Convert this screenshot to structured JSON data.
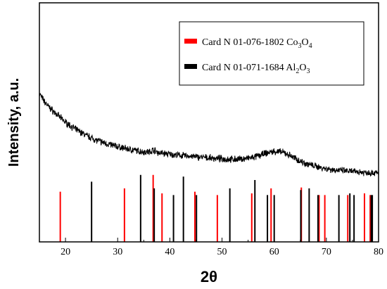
{
  "chart_data": {
    "type": "line",
    "xlabel": "2θ",
    "ylabel": "Intensity, a.u.",
    "xlim": [
      15,
      80
    ],
    "x_ticks": [
      20,
      30,
      40,
      50,
      60,
      70,
      80
    ],
    "y_ticks_shown": false,
    "grid": false,
    "legend_position": "top-right",
    "legend": [
      {
        "label": "Card N 01-076-1802 Co",
        "sub1": "3",
        "mid": "O",
        "sub2": "4",
        "color": "#ff0000"
      },
      {
        "label": "Card N 01-071-1684 Al",
        "sub1": "2",
        "mid": "O",
        "sub2": "3",
        "color": "#000000"
      }
    ],
    "pattern": {
      "name": "measured XRD pattern",
      "color": "#000000",
      "x": [
        15,
        16,
        17,
        18,
        19,
        20,
        22,
        24,
        26,
        28,
        30,
        32,
        34,
        35,
        36,
        36.9,
        37.8,
        39,
        40,
        42,
        44,
        46,
        48,
        50,
        52,
        54,
        56,
        57,
        58,
        59,
        60,
        61,
        62,
        63,
        64,
        65,
        66,
        68,
        70,
        72,
        74,
        76,
        78,
        80
      ],
      "y": [
        0.62,
        0.585,
        0.56,
        0.54,
        0.52,
        0.5,
        0.47,
        0.445,
        0.425,
        0.41,
        0.398,
        0.388,
        0.38,
        0.377,
        0.376,
        0.385,
        0.373,
        0.37,
        0.366,
        0.362,
        0.358,
        0.354,
        0.35,
        0.347,
        0.345,
        0.347,
        0.353,
        0.36,
        0.368,
        0.374,
        0.378,
        0.377,
        0.372,
        0.362,
        0.35,
        0.338,
        0.328,
        0.316,
        0.306,
        0.3,
        0.296,
        0.293,
        0.29,
        0.288
      ]
    },
    "reference_lines": {
      "Co3O4": {
        "color": "#ff0000",
        "positions": [
          19.0,
          31.3,
          36.8,
          38.5,
          44.8,
          49.1,
          55.7,
          59.4,
          65.2,
          68.6,
          69.7,
          74.1,
          77.3,
          78.4
        ],
        "intensities": [
          0.6,
          0.64,
          0.8,
          0.58,
          0.6,
          0.56,
          0.58,
          0.64,
          0.65,
          0.56,
          0.56,
          0.56,
          0.58,
          0.56
        ]
      },
      "Al2O3": {
        "color": "#000000",
        "positions": [
          25.0,
          34.4,
          37.0,
          40.7,
          42.6,
          45.1,
          51.5,
          56.3,
          58.7,
          60.0,
          65.1,
          66.7,
          68.4,
          72.4,
          74.5,
          75.3,
          78.6,
          78.8
        ],
        "intensities": [
          0.72,
          0.8,
          0.64,
          0.56,
          0.78,
          0.56,
          0.64,
          0.74,
          0.56,
          0.56,
          0.62,
          0.64,
          0.56,
          0.56,
          0.58,
          0.56,
          0.56,
          0.56
        ]
      }
    }
  }
}
